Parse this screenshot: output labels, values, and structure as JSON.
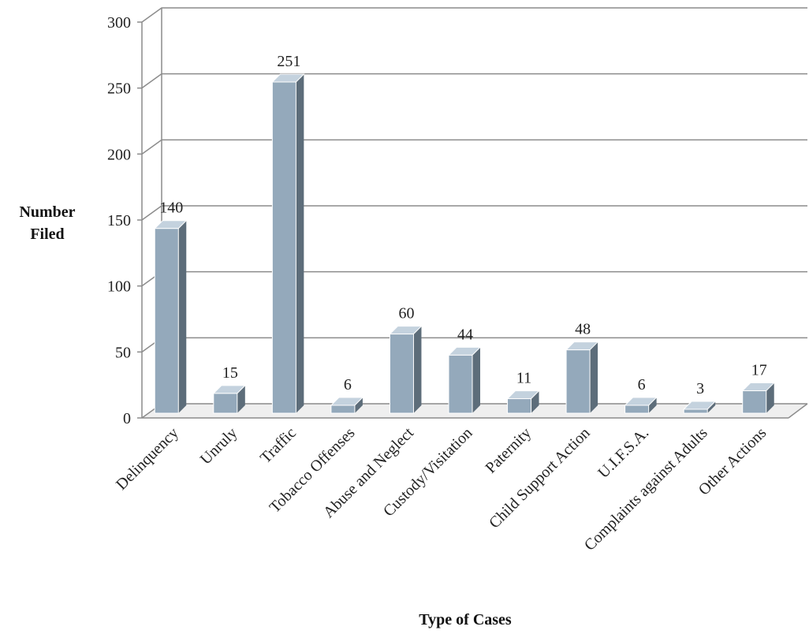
{
  "chart_data": {
    "type": "bar",
    "title": "",
    "xlabel": "Type of Cases",
    "ylabel_lines": [
      "Number",
      "Filed"
    ],
    "ylim": [
      0,
      300
    ],
    "yticks": [
      "0",
      "50",
      "100",
      "150",
      "200",
      "250",
      "300"
    ],
    "categories": [
      "Delinquency",
      "Unruly",
      "Traffic",
      "Tobacco Offenses",
      "Abuse and Neglect",
      "Custody/Visitation",
      "Paternity",
      "Child Support Action",
      "U.I.F.S.A.",
      "Complaints against Adults",
      "Other Actions"
    ],
    "values": [
      140,
      15,
      251,
      6,
      60,
      44,
      11,
      48,
      6,
      3,
      17
    ],
    "value_labels": [
      "140",
      "15",
      "251",
      "6",
      "60",
      "44",
      "11",
      "48",
      "6",
      "3",
      "17"
    ],
    "grid": true,
    "legend": "none",
    "colors": {
      "bar_front": "#94a9bb",
      "bar_top": "#c4d2de",
      "bar_side": "#5d6d7a",
      "gridline": "#8c8c8c",
      "floor": "#e2e2e2"
    }
  }
}
